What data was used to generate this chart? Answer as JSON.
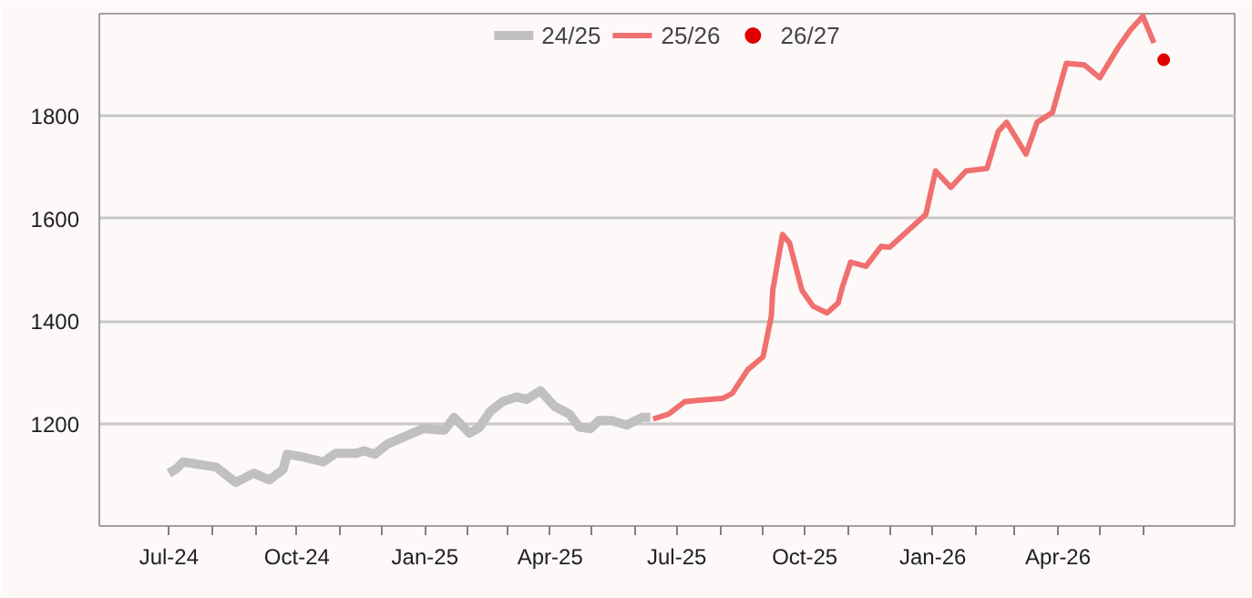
{
  "chart_data": {
    "type": "line",
    "legend": "top",
    "grid": "y",
    "marker": "none",
    "line_style": "solid",
    "xlim": [
      "2024-05-12",
      "2026-08-06"
    ],
    "ylim": [
      1000,
      2000
    ],
    "yticks": [
      1200,
      1400,
      1600,
      1800
    ],
    "xticks": [
      {
        "value": "2024-07-01",
        "label": "Jul-24"
      },
      {
        "value": "2024-08-01",
        "label": null
      },
      {
        "value": "2024-09-01",
        "label": null
      },
      {
        "value": "2024-10-01",
        "label": "Oct-24"
      },
      {
        "value": "2024-11-01",
        "label": null
      },
      {
        "value": "2024-12-01",
        "label": null
      },
      {
        "value": "2025-01-01",
        "label": "Jan-25"
      },
      {
        "value": "2025-02-01",
        "label": null
      },
      {
        "value": "2025-03-01",
        "label": null
      },
      {
        "value": "2025-04-01",
        "label": "Apr-25"
      },
      {
        "value": "2025-05-01",
        "label": null
      },
      {
        "value": "2025-06-01",
        "label": null
      },
      {
        "value": "2025-07-01",
        "label": "Jul-25"
      },
      {
        "value": "2025-08-01",
        "label": null
      },
      {
        "value": "2025-09-01",
        "label": null
      },
      {
        "value": "2025-10-01",
        "label": "Oct-25"
      },
      {
        "value": "2025-11-01",
        "label": null
      },
      {
        "value": "2025-12-01",
        "label": null
      },
      {
        "value": "2026-01-01",
        "label": "Jan-26"
      },
      {
        "value": "2026-02-01",
        "label": null
      },
      {
        "value": "2026-03-01",
        "label": null
      },
      {
        "value": "2026-04-01",
        "label": "Apr-26"
      },
      {
        "value": "2026-05-01",
        "label": null
      },
      {
        "value": "2026-06-01",
        "label": null
      }
    ],
    "series": [
      {
        "name": "24/25",
        "color": "#c0c0c0",
        "x": [
          "2024-07-01",
          "2024-07-07",
          "2024-07-11",
          "2024-08-04",
          "2024-08-18",
          "2024-08-31",
          "2024-09-11",
          "2024-09-21",
          "2024-09-24",
          "2024-10-05",
          "2024-10-20",
          "2024-10-29",
          "2024-11-13",
          "2024-11-18",
          "2024-11-26",
          "2024-12-05",
          "2024-12-31",
          "2025-01-15",
          "2025-01-22",
          "2025-02-02",
          "2025-02-09",
          "2025-02-17",
          "2025-02-26",
          "2025-03-08",
          "2025-03-15",
          "2025-03-25",
          "2025-04-04",
          "2025-04-15",
          "2025-04-22",
          "2025-04-30",
          "2025-05-06",
          "2025-05-15",
          "2025-05-26",
          "2025-06-06",
          "2025-06-12"
        ],
        "values": [
          1103,
          1113,
          1125,
          1115,
          1085,
          1103,
          1090,
          1110,
          1140,
          1135,
          1125,
          1142,
          1142,
          1147,
          1140,
          1160,
          1190,
          1187,
          1212,
          1181,
          1192,
          1224,
          1243,
          1252,
          1247,
          1264,
          1234,
          1218,
          1193,
          1190,
          1206,
          1206,
          1197,
          1212,
          1212
        ]
      },
      {
        "name": "25/26",
        "color": "#f07070",
        "x": [
          "2025-06-14",
          "2025-06-25",
          "2025-07-07",
          "2025-08-03",
          "2025-08-10",
          "2025-08-21",
          "2025-09-01",
          "2025-09-07",
          "2025-09-08",
          "2025-09-15",
          "2025-09-20",
          "2025-09-29",
          "2025-10-07",
          "2025-10-17",
          "2025-10-25",
          "2025-10-28",
          "2025-11-03",
          "2025-11-14",
          "2025-11-25",
          "2025-12-01",
          "2025-12-27",
          "2026-01-03",
          "2026-01-14",
          "2026-01-25",
          "2026-02-09",
          "2026-02-17",
          "2026-02-23",
          "2026-03-09",
          "2026-03-17",
          "2026-03-28",
          "2026-04-07",
          "2026-04-20",
          "2026-05-01",
          "2026-05-15",
          "2026-05-23",
          "2026-06-01",
          "2026-06-09"
        ],
        "values": [
          1209,
          1218,
          1243,
          1249,
          1259,
          1305,
          1330,
          1410,
          1460,
          1569,
          1553,
          1460,
          1429,
          1416,
          1435,
          1466,
          1515,
          1507,
          1546,
          1544,
          1608,
          1693,
          1661,
          1693,
          1698,
          1770,
          1788,
          1726,
          1788,
          1807,
          1903,
          1900,
          1875,
          1937,
          1968,
          1995,
          1943
        ]
      },
      {
        "name": "26/27",
        "color": "#e00000",
        "marker": "circle",
        "x": [
          "2026-06-16"
        ],
        "values": [
          1910
        ]
      }
    ]
  }
}
